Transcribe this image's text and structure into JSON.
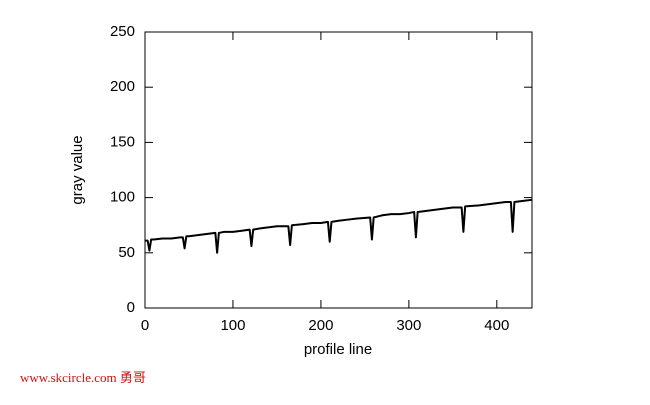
{
  "chart_data": {
    "type": "line",
    "xlabel": "profile line",
    "ylabel": "gray value",
    "x": [
      0,
      3,
      5,
      7,
      10,
      20,
      30,
      40,
      43,
      45,
      47,
      50,
      60,
      70,
      80,
      82,
      84,
      90,
      100,
      110,
      119,
      121,
      123,
      130,
      140,
      150,
      163,
      165,
      167,
      180,
      190,
      200,
      208,
      210,
      212,
      220,
      230,
      240,
      256,
      258,
      260,
      270,
      280,
      290,
      300,
      306,
      308,
      310,
      320,
      330,
      340,
      350,
      360,
      362,
      364,
      380,
      390,
      400,
      410,
      416,
      418,
      420,
      430,
      440
    ],
    "series": [
      {
        "color": "#000000",
        "values": [
          61,
          61,
          52,
          62,
          62,
          63,
          63,
          64,
          64,
          54,
          65,
          65,
          66,
          67,
          68,
          50,
          68,
          69,
          69,
          70,
          71,
          56,
          71,
          72,
          73,
          74,
          74,
          57,
          75,
          76,
          77,
          77,
          78,
          60,
          78,
          79,
          80,
          81,
          82,
          62,
          82,
          84,
          85,
          85,
          86,
          87,
          64,
          87,
          88,
          89,
          90,
          91,
          91,
          69,
          92,
          93,
          94,
          95,
          96,
          96,
          69,
          96,
          97,
          98
        ]
      }
    ],
    "xlim": [
      0,
      440
    ],
    "ylim": [
      0,
      250
    ],
    "xticks": [
      0,
      100,
      200,
      300,
      400
    ],
    "yticks": [
      0,
      50,
      100,
      150,
      200,
      250
    ]
  },
  "watermark": "www.skcircle.com 勇哥"
}
